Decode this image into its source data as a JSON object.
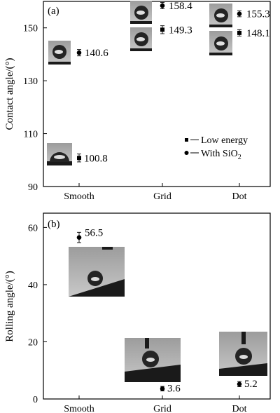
{
  "chart_data": [
    {
      "type": "scatter",
      "panel_label": "(a)",
      "categories": [
        "Smooth",
        "Grid",
        "Dot"
      ],
      "ylabel": "Contact angle/(°)",
      "ylim": [
        90,
        160
      ],
      "yticks": [
        90,
        110,
        130,
        150
      ],
      "series": [
        {
          "name": "Low energy",
          "marker": "square",
          "values": [
            100.8,
            149.3,
            148.1
          ],
          "errors": [
            1.5,
            1.5,
            1.2
          ],
          "labels": [
            "100.8",
            "149.3",
            "148.1"
          ]
        },
        {
          "name": "With SiO2",
          "marker": "circle",
          "values": [
            140.6,
            158.4,
            155.3
          ],
          "errors": [
            1.2,
            1.2,
            1.1
          ],
          "labels": [
            "140.6",
            "158.4",
            "155.3"
          ]
        }
      ],
      "legend": {
        "position": "bottom-right",
        "items": [
          {
            "marker": "square",
            "text": "Low energy"
          },
          {
            "marker": "circle",
            "text": "With SiO",
            "sub": "2"
          }
        ]
      }
    },
    {
      "type": "scatter",
      "panel_label": "(b)",
      "categories": [
        "Smooth",
        "Grid",
        "Dot"
      ],
      "ylabel": "Rolling angle/(°)",
      "ylim": [
        0,
        65
      ],
      "yticks": [
        0,
        20,
        40,
        60
      ],
      "series": [
        {
          "marker": "circle",
          "values": [
            56.5,
            3.6,
            5.2
          ],
          "errors": [
            1.8,
            0.8,
            0.9
          ],
          "labels": [
            "56.5",
            "3.6",
            "5.2"
          ]
        }
      ]
    }
  ],
  "colors": {
    "marker": "#000000",
    "photo_bg_top": "#b4b4b4",
    "photo_bg": "#bcbcbc",
    "substrate": "#1a1a1a",
    "droplet": "#222222"
  }
}
